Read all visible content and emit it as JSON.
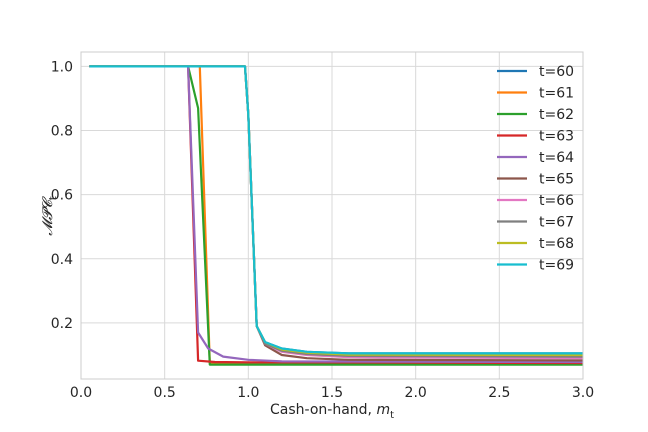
{
  "chart_data": {
    "type": "line",
    "title": "",
    "xlabel": "Cash-on-hand, ",
    "xlabel_var": "m",
    "xlabel_sub": "t",
    "ylabel": "𝓜𝓟𝓒",
    "ylabel_sub": "t",
    "xlim": [
      0.0,
      3.0
    ],
    "ylim": [
      0.025,
      1.045
    ],
    "xticks": [
      0.0,
      0.5,
      1.0,
      1.5,
      2.0,
      2.5,
      3.0
    ],
    "xtick_labels": [
      "0.0",
      "0.5",
      "1.0",
      "1.5",
      "2.0",
      "2.5",
      "3.0"
    ],
    "yticks": [
      0.2,
      0.4,
      0.6,
      0.8,
      1.0
    ],
    "ytick_labels": [
      "0.2",
      "0.4",
      "0.6",
      "0.8",
      "1.0"
    ],
    "grid": true,
    "legend_position": "top-right",
    "series": [
      {
        "name": "t=60",
        "color": "#1f77b4",
        "points": [
          [
            0.05,
            1.0
          ],
          [
            0.98,
            1.0
          ],
          [
            1.0,
            0.85
          ],
          [
            1.05,
            0.19
          ],
          [
            1.1,
            0.14
          ],
          [
            1.2,
            0.12
          ],
          [
            1.35,
            0.11
          ],
          [
            1.6,
            0.105
          ],
          [
            3.0,
            0.105
          ]
        ]
      },
      {
        "name": "t=61",
        "color": "#ff7f0e",
        "points": [
          [
            0.05,
            1.0
          ],
          [
            0.71,
            1.0
          ],
          [
            0.77,
            0.075
          ],
          [
            1.0,
            0.074
          ],
          [
            3.0,
            0.073
          ]
        ]
      },
      {
        "name": "t=62",
        "color": "#2ca02c",
        "points": [
          [
            0.05,
            1.0
          ],
          [
            0.64,
            1.0
          ],
          [
            0.7,
            0.87
          ],
          [
            0.77,
            0.07
          ],
          [
            1.0,
            0.07
          ],
          [
            3.0,
            0.07
          ]
        ]
      },
      {
        "name": "t=63",
        "color": "#d62728",
        "points": [
          [
            0.05,
            1.0
          ],
          [
            0.64,
            1.0
          ],
          [
            0.7,
            0.082
          ],
          [
            0.8,
            0.078
          ],
          [
            1.0,
            0.077
          ],
          [
            3.0,
            0.075
          ]
        ]
      },
      {
        "name": "t=64",
        "color": "#9467bd",
        "points": [
          [
            0.05,
            1.0
          ],
          [
            0.64,
            1.0
          ],
          [
            0.7,
            0.17
          ],
          [
            0.76,
            0.12
          ],
          [
            0.85,
            0.095
          ],
          [
            1.0,
            0.085
          ],
          [
            1.2,
            0.08
          ],
          [
            3.0,
            0.078
          ]
        ]
      },
      {
        "name": "t=65",
        "color": "#8c564b",
        "points": [
          [
            0.05,
            1.0
          ],
          [
            0.98,
            1.0
          ],
          [
            1.0,
            0.85
          ],
          [
            1.05,
            0.19
          ],
          [
            1.1,
            0.13
          ],
          [
            1.2,
            0.1
          ],
          [
            1.35,
            0.09
          ],
          [
            1.6,
            0.085
          ],
          [
            3.0,
            0.083
          ]
        ]
      },
      {
        "name": "t=66",
        "color": "#e377c2",
        "points": [
          [
            0.05,
            1.0
          ],
          [
            0.98,
            1.0
          ],
          [
            1.0,
            0.85
          ],
          [
            1.05,
            0.19
          ],
          [
            1.1,
            0.135
          ],
          [
            1.2,
            0.11
          ],
          [
            1.35,
            0.1
          ],
          [
            1.6,
            0.093
          ],
          [
            3.0,
            0.09
          ]
        ]
      },
      {
        "name": "t=67",
        "color": "#7f7f7f",
        "points": [
          [
            0.05,
            1.0
          ],
          [
            0.98,
            1.0
          ],
          [
            1.0,
            0.85
          ],
          [
            1.05,
            0.19
          ],
          [
            1.1,
            0.135
          ],
          [
            1.2,
            0.113
          ],
          [
            1.35,
            0.103
          ],
          [
            1.6,
            0.097
          ],
          [
            3.0,
            0.095
          ]
        ]
      },
      {
        "name": "t=68",
        "color": "#bcbd22",
        "points": [
          [
            0.05,
            1.0
          ],
          [
            0.98,
            1.0
          ],
          [
            1.0,
            0.85
          ],
          [
            1.05,
            0.19
          ],
          [
            1.1,
            0.14
          ],
          [
            1.2,
            0.117
          ],
          [
            1.35,
            0.107
          ],
          [
            1.6,
            0.101
          ],
          [
            3.0,
            0.1
          ]
        ]
      },
      {
        "name": "t=69",
        "color": "#17becf",
        "points": [
          [
            0.05,
            1.0
          ],
          [
            0.98,
            1.0
          ],
          [
            1.0,
            0.85
          ],
          [
            1.05,
            0.19
          ],
          [
            1.1,
            0.14
          ],
          [
            1.2,
            0.12
          ],
          [
            1.35,
            0.11
          ],
          [
            1.6,
            0.105
          ],
          [
            3.0,
            0.105
          ]
        ]
      }
    ]
  }
}
